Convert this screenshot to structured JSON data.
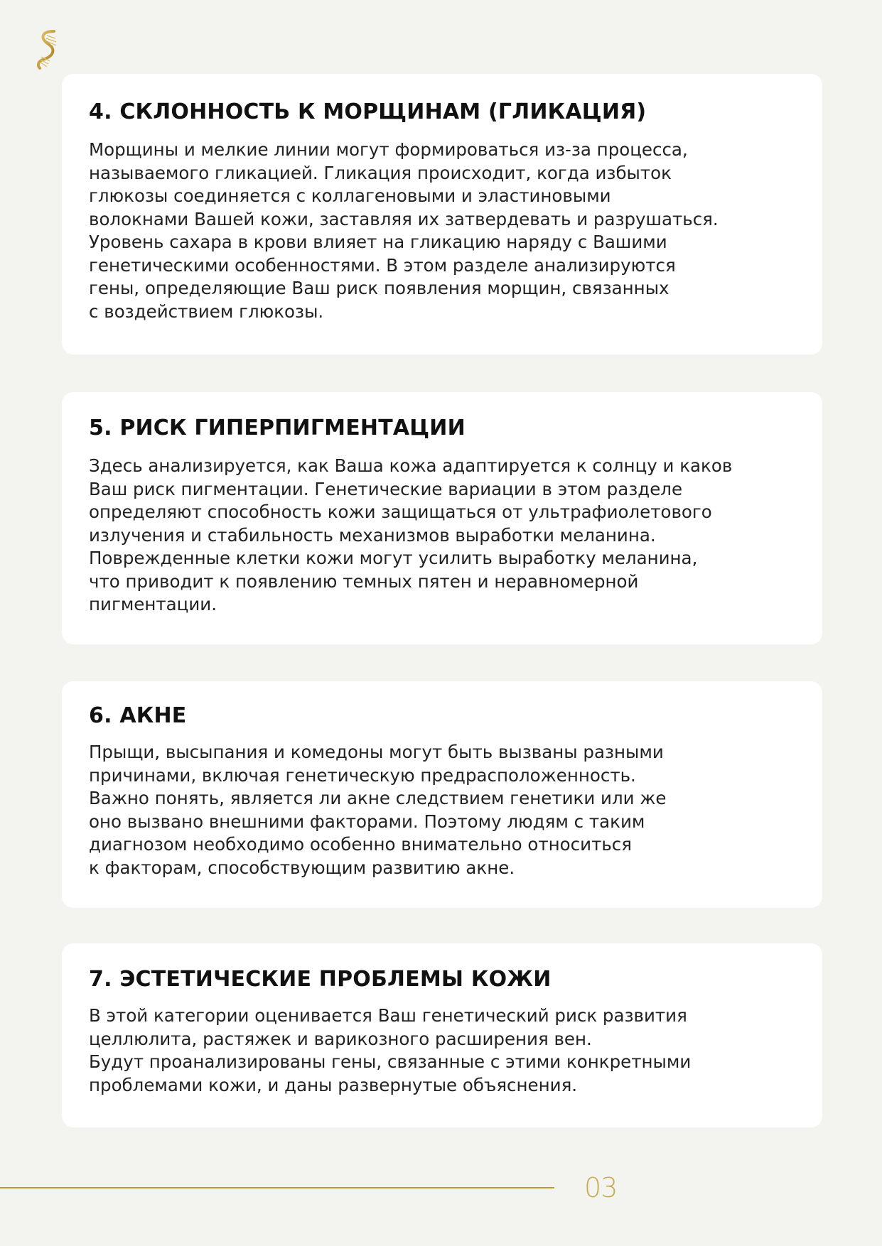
{
  "colors": {
    "accent": "#b89a3a",
    "background": "#f3f3f0",
    "card": "#ffffff"
  },
  "logo": {
    "icon": "dna-helix-icon"
  },
  "sections": [
    {
      "title": "4. СКЛОННОСТЬ К МОРЩИНАМ (ГЛИКАЦИЯ)",
      "lines": [
        "Морщины и мелкие линии могут формироваться из-за процесса,",
        "называемого гликацией. Гликация происходит, когда избыток",
        "глюкозы соединяется с коллагеновыми и эластиновыми",
        "волокнами Вашей кожи, заставляя их затвердевать и разрушаться.",
        "Уровень сахара в крови влияет на гликацию наряду с Вашими",
        "генетическими особенностями. В этом разделе анализируются",
        "гены, определяющие Ваш риск появления морщин, связанных",
        "с воздействием глюкозы."
      ]
    },
    {
      "title": "5. РИСК ГИПЕРПИГМЕНТАЦИИ",
      "lines": [
        "Здесь анализируется, как Ваша кожа адаптируется к солнцу и каков",
        "Ваш риск пигментации. Генетические вариации в этом разделе",
        "определяют способность кожи защищаться от ультрафиолетового",
        "излучения и стабильность механизмов выработки меланина.",
        "Поврежденные клетки кожи могут усилить выработку меланина,",
        "что приводит к появлению темных пятен и неравномерной",
        "пигментации."
      ]
    },
    {
      "title": "6. АКНЕ",
      "lines": [
        "Прыщи, высыпания и комедоны могут быть вызваны разными",
        "причинами, включая генетическую предрасположенность.",
        "Важно понять, является ли акне следствием генетики или же",
        "оно вызвано внешними факторами. Поэтому людям с таким",
        "диагнозом необходимо особенно внимательно относиться",
        "к факторам, способствующим развитию акне."
      ]
    },
    {
      "title": "7. ЭСТЕТИЧЕСКИЕ ПРОБЛЕМЫ КОЖИ",
      "lines": [
        "В этой категории оценивается Ваш генетический риск развития",
        "целлюлита, растяжек и варикозного расширения вен.",
        "Будут проанализированы гены, связанные с этими конкретными",
        "проблемами кожи, и даны развернутые объяснения."
      ]
    }
  ],
  "footer": {
    "page_number": "03"
  }
}
